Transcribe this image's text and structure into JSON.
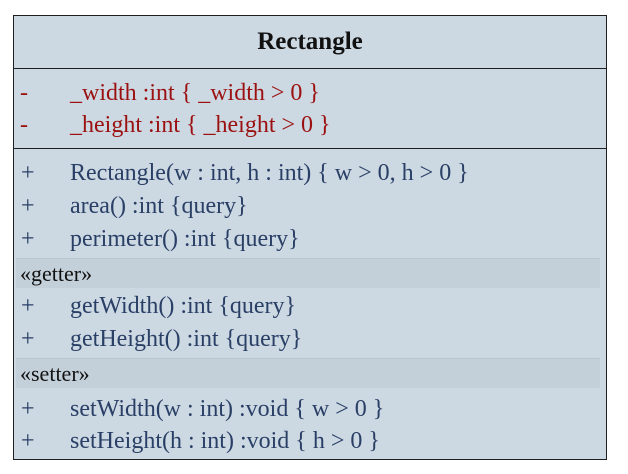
{
  "class": {
    "name": "Rectangle",
    "attributes": [
      {
        "visibility": "-",
        "text": "_width  :int { _width > 0 }"
      },
      {
        "visibility": "-",
        "text": "_height  :int { _height > 0 }"
      }
    ],
    "operations": [
      {
        "visibility": "+",
        "text": "Rectangle(w : int, h : int) { w > 0, h > 0 }"
      },
      {
        "visibility": "+",
        "text": "area()  :int {query}"
      },
      {
        "visibility": "+",
        "text": "perimeter()  :int {query}"
      }
    ],
    "getter_stereotype": "«getter»",
    "getters": [
      {
        "visibility": "+",
        "text": "getWidth()  :int {query}"
      },
      {
        "visibility": "+",
        "text": "getHeight()  :int {query}"
      }
    ],
    "setter_stereotype": "«setter»",
    "setters": [
      {
        "visibility": "+",
        "text": "setWidth(w : int)  :void { w > 0 }"
      },
      {
        "visibility": "+",
        "text": "setHeight(h : int)  :void { h > 0 }"
      }
    ]
  },
  "colors": {
    "fill": "#ccd8e2",
    "attribute_text": "#9b1010",
    "operation_text": "#2a3f66"
  }
}
